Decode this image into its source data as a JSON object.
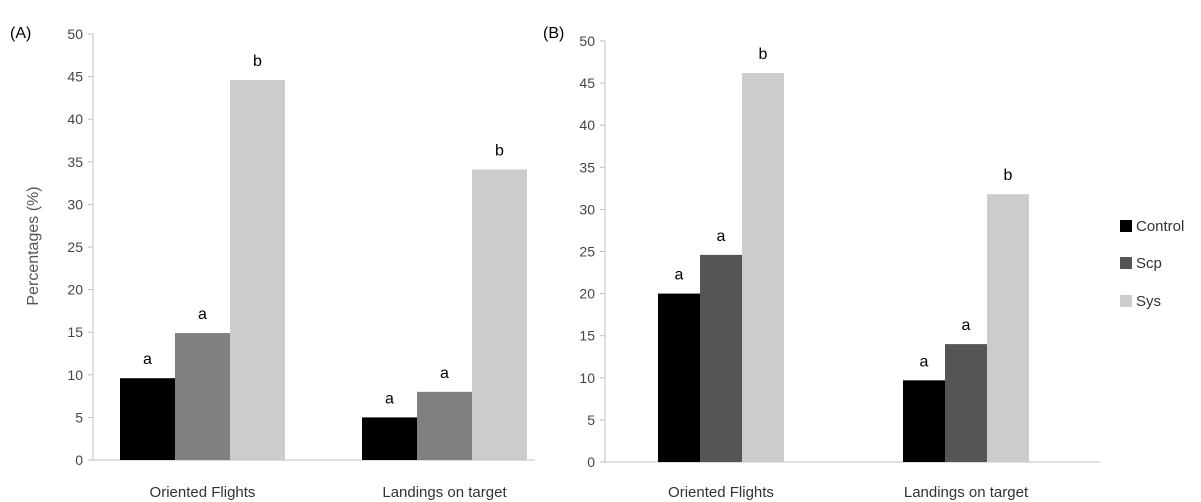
{
  "chart_data": [
    {
      "type": "bar",
      "panel_label": "(A)",
      "ylabel": "Percentages (%)",
      "categories": [
        "Oriented Flights",
        "Landings on target"
      ],
      "ylim": [
        0,
        50
      ],
      "yticks": [
        "0",
        "5",
        "10",
        "15",
        "20",
        "25",
        "30",
        "35",
        "40",
        "45",
        "50"
      ],
      "grid": false,
      "series": [
        {
          "name": "Control",
          "color": "#000000",
          "values": [
            9.6,
            5.0
          ],
          "labels": [
            "a",
            "a"
          ]
        },
        {
          "name": "Scp",
          "color": "#808080",
          "values": [
            14.9,
            8.0
          ],
          "labels": [
            "a",
            "a"
          ]
        },
        {
          "name": "Sys",
          "color": "#cccccc",
          "values": [
            44.6,
            34.1
          ],
          "labels": [
            "b",
            "b"
          ]
        }
      ]
    },
    {
      "type": "bar",
      "panel_label": "(B)",
      "ylabel": "",
      "categories": [
        "Oriented Flights",
        "Landings on target"
      ],
      "ylim": [
        0,
        50
      ],
      "yticks": [
        "0",
        "5",
        "10",
        "15",
        "20",
        "25",
        "30",
        "35",
        "40",
        "45",
        "50"
      ],
      "grid": false,
      "series": [
        {
          "name": "Control",
          "color": "#000000",
          "values": [
            20.0,
            9.7
          ],
          "labels": [
            "a",
            "a"
          ]
        },
        {
          "name": "Scp",
          "color": "#555555",
          "values": [
            24.6,
            14.0
          ],
          "labels": [
            "a",
            "a"
          ]
        },
        {
          "name": "Sys",
          "color": "#cccccc",
          "values": [
            46.2,
            31.8
          ],
          "labels": [
            "b",
            "b"
          ]
        }
      ]
    }
  ],
  "legend": {
    "placement": "right",
    "items": [
      {
        "name": "Control",
        "color": "#000000"
      },
      {
        "name": "Scp",
        "color": "#555555"
      },
      {
        "name": "Sys",
        "color": "#cccccc"
      }
    ]
  }
}
